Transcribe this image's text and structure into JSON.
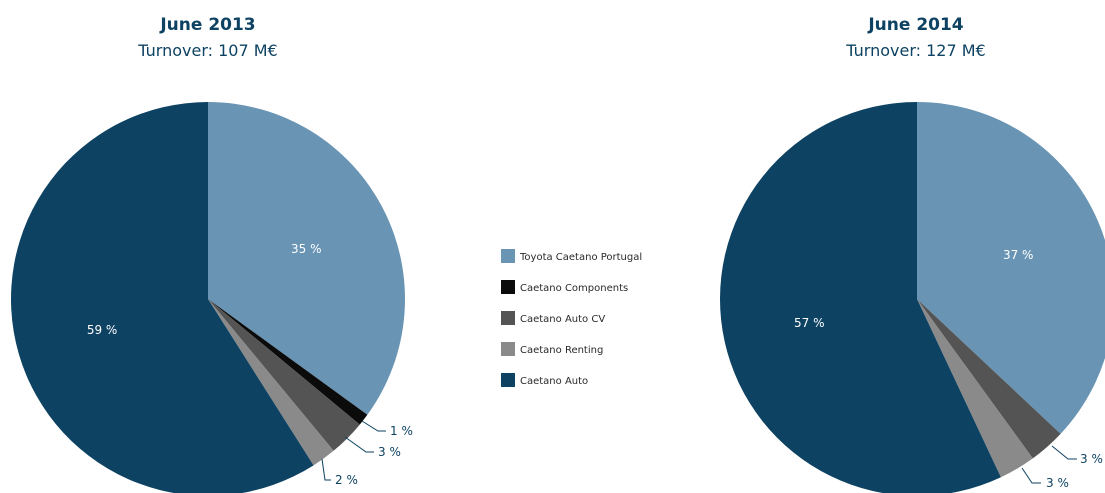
{
  "chart_data": [
    {
      "type": "pie",
      "title": "June 2013",
      "subtitle": "Turnover: 107 M€",
      "slices": [
        {
          "name": "Toyota Caetano Portugal",
          "value": 35,
          "label": "35 %"
        },
        {
          "name": "Caetano Components",
          "value": 1,
          "label": "1 %"
        },
        {
          "name": "Caetano Auto CV",
          "value": 3,
          "label": "3 %"
        },
        {
          "name": "Caetano Renting",
          "value": 2,
          "label": "2 %"
        },
        {
          "name": "Caetano Auto",
          "value": 59,
          "label": "59 %"
        }
      ]
    },
    {
      "type": "pie",
      "title": "June 2014",
      "subtitle": "Turnover: 127 M€",
      "slices": [
        {
          "name": "Toyota Caetano Portugal",
          "value": 37,
          "label": "37 %"
        },
        {
          "name": "Caetano Components",
          "value": 0,
          "label": ""
        },
        {
          "name": "Caetano Auto CV",
          "value": 3,
          "label": "3 %"
        },
        {
          "name": "Caetano Renting",
          "value": 3,
          "label": "3 %"
        },
        {
          "name": "Caetano Auto",
          "value": 57,
          "label": "57 %"
        }
      ]
    }
  ],
  "legend": {
    "placement": "center",
    "items": [
      {
        "label": "Toyota Caetano Portugal",
        "color": "#6994b4"
      },
      {
        "label": "Caetano Components",
        "color": "#0b0b0b"
      },
      {
        "label": "Caetano Auto CV",
        "color": "#545454"
      },
      {
        "label": "Caetano Renting",
        "color": "#8a8a8a"
      },
      {
        "label": "Caetano Auto",
        "color": "#0d4262"
      }
    ]
  }
}
